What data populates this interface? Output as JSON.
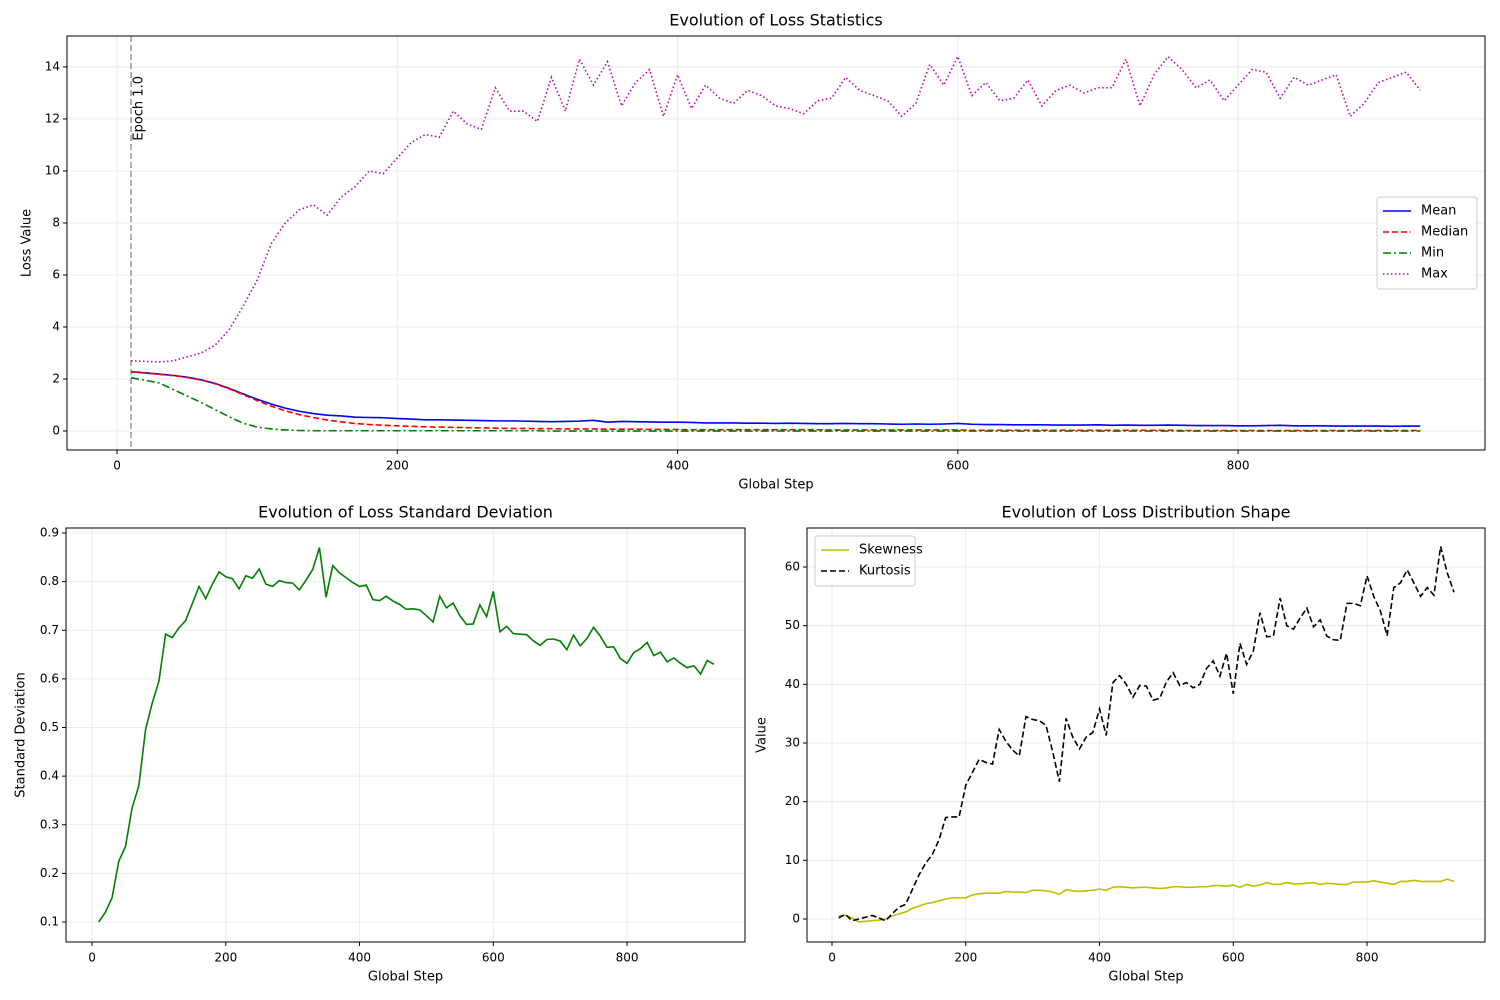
{
  "chart_data": [
    {
      "type": "line",
      "title": "Evolution of Loss Statistics",
      "xlabel": "Global Step",
      "ylabel": "Loss Value",
      "x": [
        10,
        20,
        30,
        40,
        50,
        60,
        70,
        80,
        90,
        100,
        110,
        120,
        130,
        140,
        150,
        160,
        170,
        180,
        190,
        200,
        210,
        220,
        230,
        240,
        250,
        260,
        270,
        280,
        290,
        300,
        310,
        320,
        330,
        340,
        350,
        360,
        370,
        380,
        390,
        400,
        410,
        420,
        430,
        440,
        450,
        460,
        470,
        480,
        490,
        500,
        510,
        520,
        530,
        540,
        550,
        560,
        570,
        580,
        590,
        600,
        610,
        620,
        630,
        640,
        650,
        660,
        670,
        680,
        690,
        700,
        710,
        720,
        730,
        740,
        750,
        760,
        770,
        780,
        790,
        800,
        810,
        820,
        830,
        840,
        850,
        860,
        870,
        880,
        890,
        900,
        910,
        920,
        930
      ],
      "series": [
        {
          "name": "Mean",
          "color": "#0000ff",
          "linestyle": "solid",
          "values": [
            2.28,
            2.24,
            2.19,
            2.14,
            2.07,
            1.97,
            1.83,
            1.64,
            1.43,
            1.22,
            1.04,
            0.88,
            0.76,
            0.67,
            0.61,
            0.58,
            0.53,
            0.52,
            0.51,
            0.48,
            0.46,
            0.43,
            0.43,
            0.42,
            0.41,
            0.4,
            0.39,
            0.39,
            0.38,
            0.37,
            0.36,
            0.37,
            0.38,
            0.41,
            0.34,
            0.37,
            0.36,
            0.35,
            0.34,
            0.34,
            0.33,
            0.31,
            0.31,
            0.31,
            0.3,
            0.3,
            0.29,
            0.3,
            0.29,
            0.28,
            0.28,
            0.29,
            0.28,
            0.28,
            0.27,
            0.26,
            0.27,
            0.26,
            0.27,
            0.29,
            0.26,
            0.25,
            0.25,
            0.24,
            0.24,
            0.24,
            0.23,
            0.23,
            0.23,
            0.24,
            0.22,
            0.23,
            0.22,
            0.22,
            0.23,
            0.22,
            0.21,
            0.21,
            0.21,
            0.2,
            0.2,
            0.21,
            0.22,
            0.2,
            0.2,
            0.2,
            0.19,
            0.19,
            0.19,
            0.19,
            0.18,
            0.19,
            0.19
          ]
        },
        {
          "name": "Median",
          "color": "#ff0000",
          "linestyle": "dashed",
          "values": [
            2.27,
            2.23,
            2.18,
            2.13,
            2.06,
            1.96,
            1.82,
            1.62,
            1.4,
            1.17,
            0.96,
            0.78,
            0.63,
            0.52,
            0.42,
            0.35,
            0.29,
            0.25,
            0.22,
            0.2,
            0.18,
            0.16,
            0.15,
            0.14,
            0.13,
            0.12,
            0.11,
            0.1,
            0.1,
            0.09,
            0.09,
            0.08,
            0.08,
            0.08,
            0.07,
            0.07,
            0.07,
            0.06,
            0.06,
            0.06,
            0.05,
            0.05,
            0.05,
            0.05,
            0.05,
            0.05,
            0.05,
            0.05,
            0.05,
            0.05,
            0.04,
            0.04,
            0.04,
            0.04,
            0.04,
            0.04,
            0.04,
            0.04,
            0.04,
            0.04,
            0.03,
            0.03,
            0.03,
            0.03,
            0.03,
            0.03,
            0.03,
            0.03,
            0.03,
            0.03,
            0.03,
            0.03,
            0.03,
            0.03,
            0.03,
            0.02,
            0.02,
            0.02,
            0.02,
            0.02,
            0.02,
            0.02,
            0.02,
            0.02,
            0.02,
            0.02,
            0.02,
            0.02,
            0.02,
            0.02,
            0.02,
            0.02,
            0.02
          ]
        },
        {
          "name": "Min",
          "color": "#008000",
          "linestyle": "dashdot",
          "values": [
            2.05,
            1.95,
            1.85,
            1.6,
            1.35,
            1.1,
            0.82,
            0.55,
            0.3,
            0.15,
            0.08,
            0.04,
            0.02,
            0.01,
            0.01,
            0.01,
            0.01,
            0.01,
            0.01,
            0.01,
            0.01,
            0.01,
            0.01,
            0.01,
            0.01,
            0.01,
            0.01,
            0.01,
            0.01,
            0.01,
            0,
            0,
            0,
            0,
            0,
            0,
            0,
            0,
            0,
            0,
            0,
            0,
            0,
            0,
            0,
            0,
            0,
            0,
            0,
            0,
            0,
            0,
            0,
            0,
            0,
            0,
            0,
            0,
            0,
            0,
            0,
            0,
            0,
            0,
            0,
            0,
            0,
            0,
            0,
            0,
            0,
            0,
            0,
            0,
            0,
            0,
            0,
            0,
            0,
            0,
            0,
            0,
            0,
            0,
            0,
            0,
            0,
            0,
            0,
            0,
            0,
            0,
            0
          ]
        },
        {
          "name": "Max",
          "color": "#bf00bf",
          "linestyle": "dotted",
          "values": [
            2.7,
            2.68,
            2.65,
            2.7,
            2.85,
            3.0,
            3.3,
            3.9,
            4.8,
            5.8,
            7.2,
            8.0,
            8.5,
            8.7,
            8.3,
            9.0,
            9.4,
            10.0,
            9.9,
            10.5,
            11.1,
            11.4,
            11.3,
            12.3,
            11.8,
            11.6,
            13.2,
            12.3,
            12.3,
            11.9,
            13.6,
            12.3,
            14.3,
            13.3,
            14.2,
            12.5,
            13.4,
            13.9,
            12.1,
            13.7,
            12.4,
            13.3,
            12.8,
            12.6,
            13.1,
            12.9,
            12.5,
            12.4,
            12.2,
            12.7,
            12.8,
            13.6,
            13.1,
            12.9,
            12.7,
            12.1,
            12.6,
            14.1,
            13.3,
            14.4,
            12.9,
            13.4,
            12.7,
            12.8,
            13.5,
            12.5,
            13.1,
            13.3,
            13.0,
            13.2,
            13.2,
            14.3,
            12.5,
            13.7,
            14.4,
            13.9,
            13.2,
            13.5,
            12.7,
            13.3,
            13.9,
            13.8,
            12.8,
            13.6,
            13.3,
            13.5,
            13.7,
            12.1,
            12.6,
            13.4,
            13.6,
            13.8,
            13.1
          ]
        }
      ],
      "vlines": [
        {
          "x": 10,
          "label": "Epoch 1.0"
        }
      ],
      "xlim": [
        -35.7,
        976.2
      ],
      "ylim": [
        -0.73,
        15.19
      ],
      "xticks": [
        0,
        200,
        400,
        600,
        800
      ],
      "yticks": [
        0,
        2,
        4,
        6,
        8,
        10,
        12,
        14
      ],
      "grid": true,
      "legend": "center right"
    },
    {
      "type": "line",
      "title": "Evolution of Loss Standard Deviation",
      "xlabel": "Global Step",
      "ylabel": "Standard Deviation",
      "x": [
        10,
        20,
        30,
        40,
        50,
        60,
        70,
        80,
        90,
        100,
        110,
        120,
        130,
        140,
        150,
        160,
        170,
        180,
        190,
        200,
        210,
        220,
        230,
        240,
        250,
        260,
        270,
        280,
        290,
        300,
        310,
        320,
        330,
        340,
        350,
        360,
        370,
        380,
        390,
        400,
        410,
        420,
        430,
        440,
        450,
        460,
        470,
        480,
        490,
        500,
        510,
        520,
        530,
        540,
        550,
        560,
        570,
        580,
        590,
        600,
        610,
        620,
        630,
        640,
        650,
        660,
        670,
        680,
        690,
        700,
        710,
        720,
        730,
        740,
        750,
        760,
        770,
        780,
        790,
        800,
        810,
        820,
        830,
        840,
        850,
        860,
        870,
        880,
        890,
        900,
        910,
        920,
        930
      ],
      "series": [
        {
          "color": "#008000",
          "linestyle": "solid",
          "values": [
            0.1,
            0.12,
            0.15,
            0.225,
            0.255,
            0.335,
            0.38,
            0.495,
            0.55,
            0.595,
            0.692,
            0.685,
            0.705,
            0.72,
            0.755,
            0.79,
            0.765,
            0.795,
            0.82,
            0.81,
            0.806,
            0.785,
            0.812,
            0.807,
            0.826,
            0.795,
            0.79,
            0.802,
            0.798,
            0.797,
            0.783,
            0.803,
            0.825,
            0.87,
            0.768,
            0.833,
            0.818,
            0.808,
            0.798,
            0.79,
            0.793,
            0.763,
            0.761,
            0.77,
            0.76,
            0.753,
            0.743,
            0.744,
            0.742,
            0.73,
            0.717,
            0.77,
            0.746,
            0.756,
            0.73,
            0.712,
            0.713,
            0.752,
            0.728,
            0.78,
            0.697,
            0.708,
            0.693,
            0.692,
            0.691,
            0.678,
            0.669,
            0.681,
            0.682,
            0.678,
            0.66,
            0.69,
            0.668,
            0.683,
            0.706,
            0.688,
            0.665,
            0.666,
            0.642,
            0.632,
            0.654,
            0.662,
            0.675,
            0.648,
            0.655,
            0.635,
            0.643,
            0.632,
            0.623,
            0.627,
            0.61,
            0.638,
            0.63
          ]
        }
      ],
      "xlim": [
        -38.9,
        976.4
      ],
      "ylim": [
        0.0589,
        0.9103
      ],
      "xticks": [
        0,
        200,
        400,
        600,
        800
      ],
      "yticks": [
        0.1,
        0.2,
        0.3,
        0.4,
        0.5,
        0.6,
        0.7,
        0.8,
        0.9
      ],
      "grid": true
    },
    {
      "type": "line",
      "title": "Evolution of Loss Distribution Shape",
      "xlabel": "Global Step",
      "ylabel": "Value",
      "x": [
        10,
        20,
        30,
        40,
        50,
        60,
        70,
        80,
        90,
        100,
        110,
        120,
        130,
        140,
        150,
        160,
        170,
        180,
        190,
        200,
        210,
        220,
        230,
        240,
        250,
        260,
        270,
        280,
        290,
        300,
        310,
        320,
        330,
        340,
        350,
        360,
        370,
        380,
        390,
        400,
        410,
        420,
        430,
        440,
        450,
        460,
        470,
        480,
        490,
        500,
        510,
        520,
        530,
        540,
        550,
        560,
        570,
        580,
        590,
        600,
        610,
        620,
        630,
        640,
        650,
        660,
        670,
        680,
        690,
        700,
        710,
        720,
        730,
        740,
        750,
        760,
        770,
        780,
        790,
        800,
        810,
        820,
        830,
        840,
        850,
        860,
        870,
        880,
        890,
        900,
        910,
        920,
        930
      ],
      "series": [
        {
          "name": "Skewness",
          "color": "#bfbf00",
          "linestyle": "solid",
          "values": [
            0.5,
            0.6,
            0.2,
            -0.5,
            -0.4,
            -0.3,
            -0.2,
            0.0,
            0.5,
            0.9,
            1.2,
            1.8,
            2.2,
            2.6,
            2.8,
            3.1,
            3.4,
            3.6,
            3.6,
            3.6,
            4.1,
            4.3,
            4.4,
            4.4,
            4.4,
            4.7,
            4.6,
            4.6,
            4.5,
            4.9,
            4.9,
            4.8,
            4.6,
            4.2,
            5.0,
            4.8,
            4.7,
            4.8,
            4.9,
            5.1,
            4.9,
            5.4,
            5.5,
            5.4,
            5.3,
            5.4,
            5.4,
            5.3,
            5.2,
            5.3,
            5.5,
            5.5,
            5.4,
            5.4,
            5.5,
            5.5,
            5.7,
            5.7,
            5.6,
            5.8,
            5.4,
            5.9,
            5.6,
            5.8,
            6.2,
            5.9,
            5.9,
            6.2,
            6.0,
            6.0,
            6.1,
            6.2,
            5.9,
            6.1,
            6.0,
            5.9,
            5.9,
            6.3,
            6.3,
            6.3,
            6.5,
            6.3,
            6.1,
            5.9,
            6.4,
            6.4,
            6.6,
            6.4,
            6.4,
            6.4,
            6.4,
            6.8,
            6.4
          ]
        },
        {
          "name": "Kurtosis",
          "color": "#000000",
          "linestyle": "dashed",
          "values": [
            0.2,
            0.8,
            -0.3,
            0.0,
            0.3,
            0.6,
            0.2,
            -0.3,
            0.9,
            2.0,
            2.5,
            5.0,
            7.5,
            9.5,
            11.0,
            13.5,
            17.3,
            17.4,
            17.4,
            22.8,
            25.0,
            27.2,
            26.7,
            26.4,
            32.3,
            30.3,
            28.8,
            27.8,
            34.5,
            34.0,
            33.8,
            33.0,
            28.5,
            23.4,
            34.2,
            31.0,
            29.0,
            31.0,
            31.8,
            35.8,
            31.3,
            40.3,
            41.5,
            40.0,
            37.8,
            39.8,
            39.7,
            37.3,
            37.6,
            40.4,
            42.0,
            39.8,
            40.3,
            39.4,
            40.0,
            42.7,
            44.0,
            41.4,
            45.3,
            38.4,
            47.0,
            43.4,
            45.7,
            52.2,
            48.1,
            48.2,
            54.7,
            50.0,
            49.4,
            51.3,
            53.0,
            49.8,
            51.0,
            48.2,
            47.6,
            47.5,
            53.8,
            53.8,
            53.4,
            58.5,
            55.0,
            52.5,
            48.3,
            56.5,
            57.3,
            59.5,
            57.3,
            55.0,
            56.5,
            55.2,
            63.5,
            59.0,
            55.7
          ]
        }
      ],
      "xlim": [
        -37.4,
        976.4
      ],
      "ylim": [
        -3.92,
        66.65
      ],
      "xticks": [
        0,
        200,
        400,
        600,
        800
      ],
      "yticks": [
        0,
        10,
        20,
        30,
        40,
        50,
        60
      ],
      "grid": true,
      "legend": "upper left"
    }
  ]
}
